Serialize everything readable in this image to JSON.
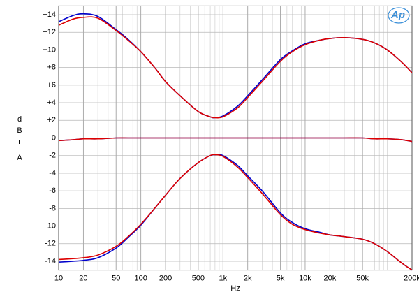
{
  "chart_data": {
    "type": "line",
    "logo": "Ap",
    "xlabel": "Hz",
    "ylabel": "dBr",
    "ylabel2": "A",
    "xscale": "log",
    "grid": true,
    "minor_grid": true,
    "xlim": [
      10,
      200000
    ],
    "ylim": [
      -15,
      15
    ],
    "xticks": [
      10,
      20,
      50,
      100,
      200,
      500,
      {
        "value": 1000,
        "label": "1k"
      },
      {
        "value": 2000,
        "label": "2k"
      },
      {
        "value": 5000,
        "label": "5k"
      },
      {
        "value": 10000,
        "label": "10k"
      },
      {
        "value": 20000,
        "label": "20k"
      },
      {
        "value": 50000,
        "label": "50k"
      },
      {
        "value": 200000,
        "label": "200k"
      }
    ],
    "yticks": [
      {
        "value": 14,
        "label": "+14"
      },
      {
        "value": 12,
        "label": "+12"
      },
      {
        "value": 10,
        "label": "+10"
      },
      {
        "value": 8,
        "label": "+8"
      },
      {
        "value": 6,
        "label": "+6"
      },
      {
        "value": 4,
        "label": "+4"
      },
      {
        "value": 2,
        "label": "+2"
      },
      {
        "value": 0,
        "label": "-0"
      },
      {
        "value": -2,
        "label": "-2"
      },
      {
        "value": -4,
        "label": "-4"
      },
      {
        "value": -6,
        "label": "-6"
      },
      {
        "value": -8,
        "label": "-8"
      },
      {
        "value": -10,
        "label": "-10"
      },
      {
        "value": -12,
        "label": "-12"
      },
      {
        "value": -14,
        "label": "-14"
      }
    ],
    "x": [
      10,
      15,
      20,
      30,
      50,
      70,
      100,
      150,
      200,
      300,
      500,
      700,
      800,
      1000,
      1500,
      2000,
      3000,
      5000,
      7000,
      10000,
      15000,
      20000,
      30000,
      50000,
      70000,
      100000,
      150000,
      200000
    ],
    "series": [
      {
        "color": "#0000cc",
        "values": [
          13.2,
          13.9,
          14.1,
          13.8,
          12.3,
          11.2,
          9.8,
          7.9,
          6.4,
          4.8,
          3.0,
          2.4,
          2.3,
          2.5,
          3.6,
          4.8,
          6.6,
          8.9,
          9.9,
          10.7,
          11.1,
          11.3,
          11.4,
          11.2,
          10.8,
          10.0,
          8.6,
          7.4
        ]
      },
      {
        "color": "#dd0000",
        "values": [
          12.8,
          13.5,
          13.7,
          13.6,
          12.2,
          11.1,
          9.8,
          7.9,
          6.4,
          4.8,
          3.0,
          2.4,
          2.3,
          2.4,
          3.4,
          4.6,
          6.4,
          8.7,
          9.8,
          10.6,
          11.1,
          11.3,
          11.4,
          11.2,
          10.8,
          10.0,
          8.6,
          7.4
        ]
      },
      {
        "color": "#0000cc",
        "values": [
          -0.3,
          -0.2,
          -0.1,
          -0.1,
          0,
          0,
          0,
          0,
          0,
          0,
          0,
          0,
          0,
          0,
          0,
          0,
          0,
          0,
          0,
          0,
          0,
          0,
          0,
          0,
          -0.1,
          -0.1,
          -0.2,
          -0.4
        ]
      },
      {
        "color": "#dd0000",
        "values": [
          -0.3,
          -0.2,
          -0.1,
          -0.1,
          0,
          0,
          0,
          0,
          0,
          0,
          0,
          0,
          0,
          0,
          0,
          0,
          0,
          0,
          0,
          0,
          0,
          0,
          0,
          0,
          -0.1,
          -0.1,
          -0.2,
          -0.4
        ]
      },
      {
        "color": "#0000cc",
        "values": [
          -14.1,
          -14.0,
          -13.9,
          -13.6,
          -12.5,
          -11.3,
          -9.9,
          -7.9,
          -6.5,
          -4.6,
          -2.8,
          -2.0,
          -1.9,
          -2.0,
          -3.1,
          -4.3,
          -6.0,
          -8.5,
          -9.6,
          -10.3,
          -10.7,
          -11.0,
          -11.2,
          -11.5,
          -12.0,
          -12.9,
          -14.2,
          -15.0
        ]
      },
      {
        "color": "#dd0000",
        "values": [
          -13.8,
          -13.7,
          -13.6,
          -13.3,
          -12.3,
          -11.2,
          -9.8,
          -7.9,
          -6.5,
          -4.6,
          -2.8,
          -2.0,
          -1.9,
          -2.1,
          -3.3,
          -4.5,
          -6.3,
          -8.7,
          -9.8,
          -10.4,
          -10.8,
          -11.0,
          -11.2,
          -11.5,
          -12.0,
          -12.9,
          -14.2,
          -15.0
        ]
      }
    ]
  }
}
